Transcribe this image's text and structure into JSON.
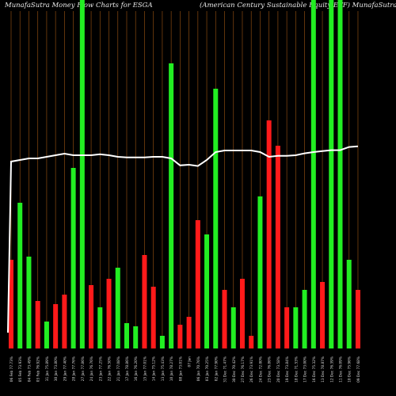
{
  "header": {
    "left": "MunafaSutra  Money Flow  Charts for ESGA",
    "right": "(American  Century Sustainable   Equity ETF) MunafaSutra.com"
  },
  "colors": {
    "up": "#22ee22",
    "down": "#ff1a1a",
    "grid": "#8a4a10",
    "line": "#ffffff",
    "background": "#000000"
  },
  "chart_data": {
    "type": "bar",
    "grid": true,
    "categories": [
      "06 Feb 77.73%",
      "05 Feb 73.93%",
      "04 Feb 73.49%",
      "03 Feb 76.92%",
      "31 Jan 75.89%",
      "30 Jan 73.80%",
      "29 Jan 77.40%",
      "28 Jan 77.76%",
      "27 Jan 77.86%",
      "24 Jan 76.76%",
      "23 Jan 77.25%",
      "22 Jan 76.50%",
      "21 Jan 77.08%",
      "17 Jan 78.86%",
      "16 Jan 76.20%",
      "15 Jan 77.01%",
      "14 Jan 75.12%",
      "13 Jan 75.43%",
      "10 Jan 78.27%",
      "08 Jan 73.01%",
      "07 Jan",
      "06 Jan 70.76%",
      "03 Jan 70.25%",
      "02 Jan 77.90%",
      "31 Dec 71.47%",
      "30 Dec 70.42%",
      "27 Dec 76.17%",
      "26 Dec 73.91%",
      "24 Dec 72.00%",
      "23 Dec 76.86%",
      "20 Dec 73.58%",
      "19 Dec 73.84%",
      "18 Dec 71.53%",
      "17 Dec 73.00%",
      "16 Dec 75.32%",
      "13 Dec 78.87%",
      "12 Dec 76.39%",
      "11 Dec 76.09%",
      "10 Dec 75.96%",
      "09 Dec 77.68%"
    ],
    "values": [
      28,
      46,
      29,
      15,
      8.5,
      14,
      17,
      57,
      110,
      20,
      13,
      22,
      25.5,
      8,
      7,
      29.5,
      19.5,
      4,
      90,
      7.5,
      10,
      40.5,
      36,
      82,
      18.5,
      13,
      22,
      4,
      48,
      72,
      64,
      13,
      13,
      18.5,
      110,
      21,
      110,
      110,
      28,
      18.5
    ],
    "direction": [
      "down",
      "up",
      "up",
      "down",
      "up",
      "down",
      "down",
      "up",
      "up",
      "down",
      "up",
      "down",
      "up",
      "up",
      "up",
      "down",
      "down",
      "up",
      "up",
      "down",
      "down",
      "down",
      "up",
      "up",
      "down",
      "up",
      "down",
      "down",
      "up",
      "down",
      "down",
      "down",
      "up",
      "up",
      "up",
      "down",
      "up",
      "up",
      "up",
      "down"
    ],
    "line": [
      59,
      59.5,
      60,
      60,
      60.5,
      61,
      61.5,
      61,
      61,
      61,
      61.3,
      61,
      60.5,
      60.3,
      60.3,
      60.3,
      60.5,
      60.5,
      60,
      57.8,
      58,
      57.6,
      59.5,
      62,
      62.5,
      62.5,
      62.5,
      62.5,
      62,
      60.5,
      60.8,
      60.8,
      61,
      61.6,
      62,
      62.3,
      62.6,
      62.6,
      63.6,
      63.8
    ],
    "line_start": 5,
    "ylim": [
      0,
      110
    ]
  }
}
